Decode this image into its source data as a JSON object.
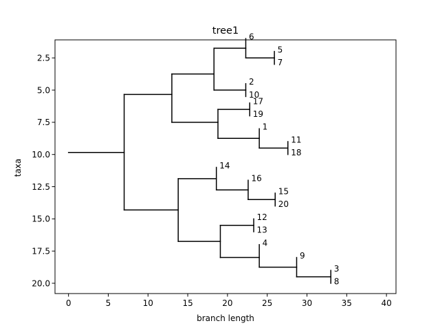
{
  "chart_data": {
    "type": "tree",
    "title": "tree1",
    "xlabel": "branch length",
    "ylabel": "taxa",
    "xlim": [
      -1.7,
      41.2
    ],
    "ylim": [
      20.8,
      1.1
    ],
    "y_inverted": true,
    "grid": false,
    "xticks": [
      0,
      5,
      10,
      15,
      20,
      25,
      30,
      35,
      40
    ],
    "xtick_labels": [
      "0",
      "5",
      "10",
      "15",
      "20",
      "25",
      "30",
      "35",
      "40"
    ],
    "yticks": [
      2.5,
      5.0,
      7.5,
      10.0,
      12.5,
      15.0,
      17.5,
      20.0
    ],
    "ytick_labels": [
      "2.5",
      "5.0",
      "7.5",
      "10.0",
      "12.5",
      "15.0",
      "17.5",
      "20.0"
    ],
    "root": {
      "x": 0,
      "y": 9.84
    },
    "nodes": [
      {
        "x": 7.0,
        "y": 9.84,
        "y_top": 5.34,
        "y_bottom": 14.31,
        "from_x": 0
      },
      {
        "x": 13.0,
        "y": 5.34,
        "y_top": 3.75,
        "y_bottom": 7.5,
        "from_x": 7.0
      },
      {
        "x": 18.3,
        "y": 3.75,
        "y_top": 1.75,
        "y_bottom": 5.0,
        "from_x": 13.0
      },
      {
        "x": 22.3,
        "y": 1.75,
        "y_top": 1.0,
        "y_bottom": 2.5,
        "from_x": 18.3
      },
      {
        "x": 25.9,
        "y": 2.5,
        "y_top": 2.0,
        "y_bottom": 3.0,
        "from_x": 22.3
      },
      {
        "x": 22.3,
        "y": 5.0,
        "y_top": 4.5,
        "y_bottom": 5.5,
        "from_x": 18.3
      },
      {
        "x": 18.8,
        "y": 7.5,
        "y_top": 6.5,
        "y_bottom": 8.75,
        "from_x": 13.0
      },
      {
        "x": 22.8,
        "y": 6.5,
        "y_top": 6.0,
        "y_bottom": 7.0,
        "from_x": 18.8
      },
      {
        "x": 24.0,
        "y": 8.75,
        "y_top": 8.0,
        "y_bottom": 9.5,
        "from_x": 18.8
      },
      {
        "x": 27.6,
        "y": 9.5,
        "y_top": 9.0,
        "y_bottom": 10.0,
        "from_x": 24.0
      },
      {
        "x": 13.8,
        "y": 14.31,
        "y_top": 11.88,
        "y_bottom": 16.75,
        "from_x": 7.0
      },
      {
        "x": 18.6,
        "y": 11.88,
        "y_top": 11.0,
        "y_bottom": 12.75,
        "from_x": 13.8
      },
      {
        "x": 22.6,
        "y": 12.75,
        "y_top": 12.0,
        "y_bottom": 13.5,
        "from_x": 18.6
      },
      {
        "x": 26.0,
        "y": 13.5,
        "y_top": 13.0,
        "y_bottom": 14.0,
        "from_x": 22.6
      },
      {
        "x": 19.1,
        "y": 16.75,
        "y_top": 15.5,
        "y_bottom": 18.0,
        "from_x": 13.8
      },
      {
        "x": 23.3,
        "y": 15.5,
        "y_top": 15.0,
        "y_bottom": 16.0,
        "from_x": 19.1
      },
      {
        "x": 24.0,
        "y": 18.0,
        "y_top": 17.0,
        "y_bottom": 18.75,
        "from_x": 19.1
      },
      {
        "x": 28.7,
        "y": 18.75,
        "y_top": 18.0,
        "y_bottom": 19.5,
        "from_x": 24.0
      },
      {
        "x": 33.0,
        "y": 19.5,
        "y_top": 19.0,
        "y_bottom": 20.0,
        "from_x": 28.7
      }
    ],
    "leaves": [
      {
        "label": "6",
        "x": 22.3,
        "y": 1.0
      },
      {
        "label": "5",
        "x": 25.9,
        "y": 2.0
      },
      {
        "label": "7",
        "x": 25.9,
        "y": 3.0
      },
      {
        "label": "2",
        "x": 22.3,
        "y": 4.5
      },
      {
        "label": "10",
        "x": 22.3,
        "y": 5.5
      },
      {
        "label": "17",
        "x": 22.8,
        "y": 6.0
      },
      {
        "label": "19",
        "x": 22.8,
        "y": 7.0
      },
      {
        "label": "1",
        "x": 24.0,
        "y": 8.0
      },
      {
        "label": "11",
        "x": 27.6,
        "y": 9.0
      },
      {
        "label": "18",
        "x": 27.6,
        "y": 10.0
      },
      {
        "label": "14",
        "x": 18.6,
        "y": 11.0
      },
      {
        "label": "16",
        "x": 22.6,
        "y": 12.0
      },
      {
        "label": "15",
        "x": 26.0,
        "y": 13.0
      },
      {
        "label": "20",
        "x": 26.0,
        "y": 14.0
      },
      {
        "label": "12",
        "x": 23.3,
        "y": 15.0
      },
      {
        "label": "13",
        "x": 23.3,
        "y": 16.0
      },
      {
        "label": "4",
        "x": 24.0,
        "y": 17.0
      },
      {
        "label": "9",
        "x": 28.7,
        "y": 18.0
      },
      {
        "label": "3",
        "x": 33.0,
        "y": 19.0
      },
      {
        "label": "8",
        "x": 33.0,
        "y": 20.0
      }
    ]
  }
}
